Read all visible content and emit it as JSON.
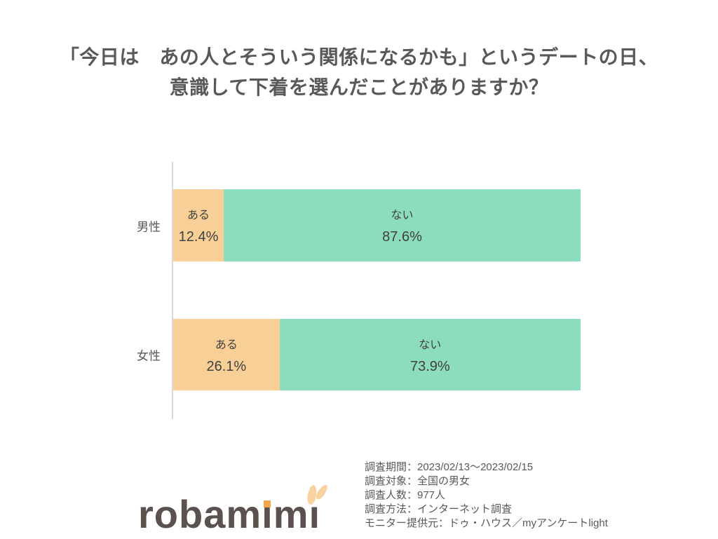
{
  "title": {
    "line1": "「今日は　あの人とそういう関係になるかも」というデートの日、",
    "line2": "意識して下着を選んだことがありますか？"
  },
  "chart_data": {
    "type": "bar",
    "orientation": "horizontal",
    "stacked": true,
    "unit": "%",
    "categories": [
      "男性",
      "女性"
    ],
    "series": [
      {
        "name": "ある",
        "values": [
          12.4,
          26.1
        ],
        "color": "#F8CF96"
      },
      {
        "name": "ない",
        "values": [
          87.6,
          73.9
        ],
        "color": "#8CDDBD"
      }
    ],
    "xlim": [
      0,
      100
    ],
    "grid": false,
    "legend_position": "labels-inside-bars",
    "title": "「今日は　あの人とそういう関係になるかも」というデートの日、意識して下着を選んだことがありますか？"
  },
  "rows": [
    {
      "label": "男性",
      "segments": [
        {
          "name": "ある",
          "pct": "12.4%",
          "value": 12.4
        },
        {
          "name": "ない",
          "pct": "87.6%",
          "value": 87.6
        }
      ]
    },
    {
      "label": "女性",
      "segments": [
        {
          "name": "ある",
          "pct": "26.1%",
          "value": 26.1
        },
        {
          "name": "ない",
          "pct": "73.9%",
          "value": 73.9
        }
      ]
    }
  ],
  "footer": {
    "logo": {
      "name": "robamimi",
      "part1": "robam",
      "dotless_i": "ı",
      "part2": "m"
    },
    "survey_lines": [
      "調査期間：2023/02/13～2023/02/15",
      "調査対象：全国の男女",
      "調査人数：977人",
      "調査方法：インターネット調査",
      "モニター提供元：ドゥ・ハウス／myアンケートlight"
    ]
  },
  "colors": {
    "aru_segment": "#F8CF96",
    "nai_segment": "#8CDDBD",
    "title_text": "#595959",
    "bar_label_text": "#404040",
    "axis_line": "#D9D9D9",
    "logo_text": "#5B5250",
    "logo_dot": "#F4A64B",
    "logo_ears": "#F8D2A0"
  }
}
